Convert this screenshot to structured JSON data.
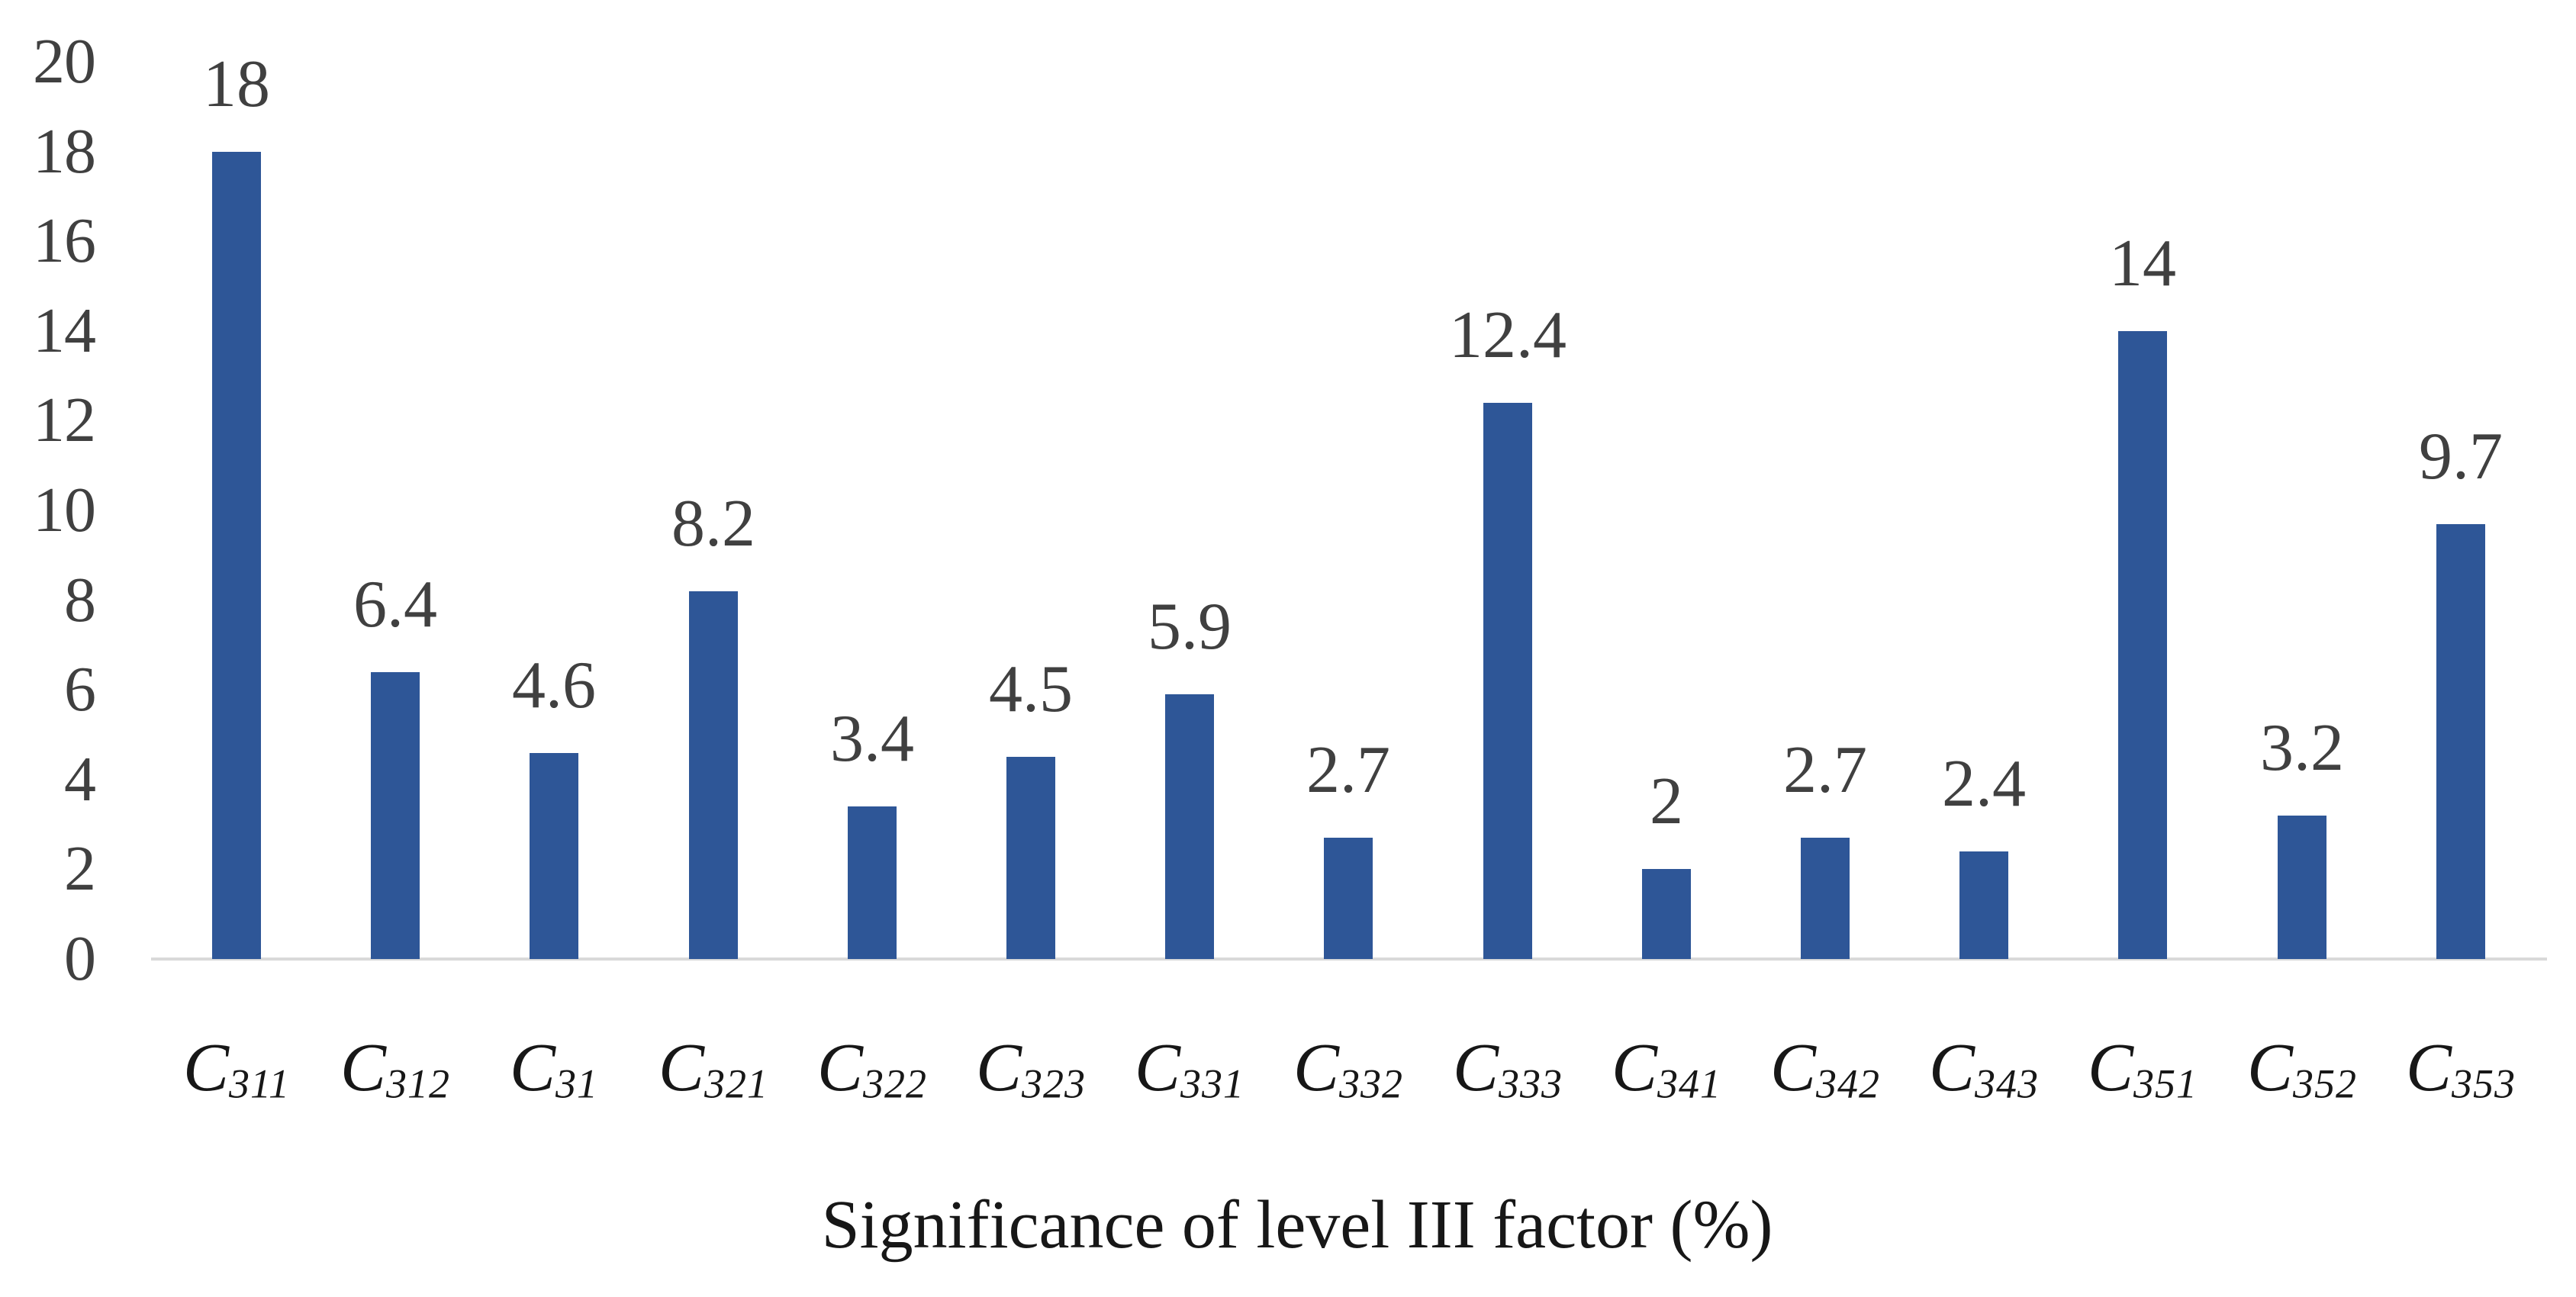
{
  "chart_data": {
    "type": "bar",
    "title": "Significance of level III factor (%)",
    "title_position": "bottom",
    "categories": [
      {
        "base": "C",
        "sub": "311"
      },
      {
        "base": "C",
        "sub": "312"
      },
      {
        "base": "C",
        "sub": "31"
      },
      {
        "base": "C",
        "sub": "321"
      },
      {
        "base": "C",
        "sub": "322"
      },
      {
        "base": "C",
        "sub": "323"
      },
      {
        "base": "C",
        "sub": "331"
      },
      {
        "base": "C",
        "sub": "332"
      },
      {
        "base": "C",
        "sub": "333"
      },
      {
        "base": "C",
        "sub": "341"
      },
      {
        "base": "C",
        "sub": "342"
      },
      {
        "base": "C",
        "sub": "343"
      },
      {
        "base": "C",
        "sub": "351"
      },
      {
        "base": "C",
        "sub": "352"
      },
      {
        "base": "C",
        "sub": "353"
      }
    ],
    "values": [
      18,
      6.4,
      4.6,
      8.2,
      3.4,
      4.5,
      5.9,
      2.7,
      12.4,
      2,
      2.7,
      2.4,
      14,
      3.2,
      9.7
    ],
    "value_labels": [
      "18",
      "6.4",
      "4.6",
      "8.2",
      "3.4",
      "4.5",
      "5.9",
      "2.7",
      "12.4",
      "2",
      "2.7",
      "2.4",
      "14",
      "3.2",
      "9.7"
    ],
    "xlabel": "",
    "ylabel": "",
    "ylim": [
      0,
      20
    ],
    "yticks": [
      0,
      2,
      4,
      6,
      8,
      10,
      12,
      14,
      16,
      18,
      20
    ],
    "grid": false,
    "legend": "none",
    "bar_color": "#2E5697",
    "axis_line_color": "#D9D9D9",
    "tick_label_color": "#404040",
    "value_label_color": "#404040",
    "category_label_color": "#171717",
    "title_color": "#171717"
  }
}
